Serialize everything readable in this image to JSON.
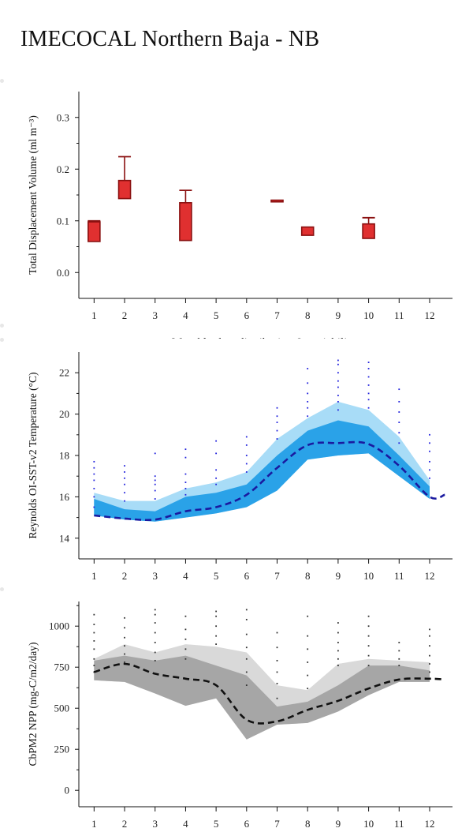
{
  "page": {
    "title": "IMECOCAL Northern Baja - NB"
  },
  "chart_data": [
    {
      "type": "bar",
      "id": "displacement",
      "ylabel": "Total Displacement Volume (ml m⁻³)",
      "xlabel": "Monthly data distribution & variability",
      "x_ticks": [
        "1",
        "2",
        "3",
        "4",
        "5",
        "6",
        "7",
        "8",
        "9",
        "10",
        "11",
        "12"
      ],
      "ylim": [
        -0.05,
        0.35
      ],
      "y_ticks": [
        "0.0",
        "0.1",
        "0.2",
        "0.3"
      ],
      "y_tick_values": [
        0.0,
        0.1,
        0.2,
        0.3
      ],
      "box_color": "#e03030",
      "box_edge": "#8a1010",
      "boxes": [
        {
          "month": 1,
          "low": 0.06,
          "high": 0.098,
          "whisker": 0.1
        },
        {
          "month": 2,
          "low": 0.143,
          "high": 0.178,
          "whisker": 0.224
        },
        {
          "month": 4,
          "low": 0.062,
          "high": 0.135,
          "whisker": 0.159
        },
        {
          "month": 7,
          "low": 0.138,
          "high": 0.14,
          "whisker": 0.14
        },
        {
          "month": 8,
          "low": 0.072,
          "high": 0.088,
          "whisker": 0.088
        },
        {
          "month": 10,
          "low": 0.066,
          "high": 0.094,
          "whisker": 0.106
        }
      ]
    },
    {
      "type": "area",
      "id": "sst",
      "ylabel": "Reynolds OI-SST-v2 Temperature (°C)",
      "x_ticks": [
        "1",
        "2",
        "3",
        "4",
        "5",
        "6",
        "7",
        "8",
        "9",
        "10",
        "11",
        "12"
      ],
      "ylim": [
        13,
        23
      ],
      "y_ticks": [
        "14",
        "16",
        "18",
        "20",
        "22"
      ],
      "y_tick_values": [
        14,
        16,
        18,
        20,
        22
      ],
      "x": [
        1,
        2,
        3,
        4,
        5,
        6,
        7,
        8,
        9,
        10,
        11,
        12
      ],
      "outer_band": {
        "color": "#a8dcf7",
        "low": [
          15.1,
          14.9,
          14.8,
          15.0,
          15.2,
          15.5,
          16.3,
          17.8,
          18.0,
          18.1,
          17.0,
          15.9
        ],
        "high": [
          16.2,
          15.8,
          15.8,
          16.4,
          16.7,
          17.2,
          18.8,
          19.8,
          20.6,
          20.2,
          18.9,
          16.8
        ]
      },
      "inner_band": {
        "color": "#2aa2e8",
        "low": [
          15.1,
          14.9,
          14.8,
          15.0,
          15.2,
          15.5,
          16.3,
          17.8,
          18.0,
          18.1,
          17.0,
          15.9
        ],
        "high": [
          15.9,
          15.4,
          15.3,
          16.0,
          16.2,
          16.6,
          18.0,
          19.2,
          19.7,
          19.4,
          18.0,
          16.5
        ]
      },
      "mean": {
        "color": "#1a1aa0",
        "x": [
          1,
          2,
          3,
          4,
          5,
          6,
          7,
          8,
          9,
          10,
          11,
          12,
          12.5
        ],
        "y": [
          15.1,
          14.95,
          14.9,
          15.3,
          15.5,
          16.1,
          17.4,
          18.5,
          18.6,
          18.55,
          17.5,
          16.0,
          16.1
        ]
      },
      "points": {
        "color": "#2222dd",
        "data": [
          {
            "x": 1,
            "ys": [
              15.5,
              16.0,
              16.4,
              16.8,
              17.1,
              17.4,
              17.7
            ]
          },
          {
            "x": 2,
            "ys": [
              15.8,
              16.2,
              16.6,
              16.9,
              17.2,
              17.5
            ]
          },
          {
            "x": 3,
            "ys": [
              15.9,
              16.3,
              16.6,
              16.8,
              17.0,
              18.1
            ]
          },
          {
            "x": 4,
            "ys": [
              16.1,
              16.4,
              16.7,
              17.1,
              17.9,
              18.3
            ]
          },
          {
            "x": 5,
            "ys": [
              16.6,
              16.9,
              17.3,
              18.1,
              18.7
            ]
          },
          {
            "x": 6,
            "ys": [
              17.2,
              17.6,
              18.0,
              18.5,
              18.9
            ]
          },
          {
            "x": 7,
            "ys": [
              18.8,
              19.2,
              19.6,
              19.9,
              20.3
            ]
          },
          {
            "x": 8,
            "ys": [
              19.9,
              20.3,
              20.6,
              21.0,
              21.5,
              22.2
            ]
          },
          {
            "x": 9,
            "ys": [
              20.2,
              20.6,
              20.9,
              21.3,
              21.6,
              22.0,
              22.4,
              22.6
            ]
          },
          {
            "x": 10,
            "ys": [
              20.3,
              20.7,
              21.0,
              21.4,
              21.8,
              22.2,
              22.5
            ]
          },
          {
            "x": 11,
            "ys": [
              18.6,
              19.1,
              19.6,
              20.1,
              20.6,
              21.2
            ]
          },
          {
            "x": 12,
            "ys": [
              16.9,
              17.3,
              17.7,
              18.2,
              18.6,
              19.0
            ]
          }
        ]
      }
    },
    {
      "type": "area",
      "id": "npp",
      "ylabel": "CbPM2 NPP (mg-C/m2/day)",
      "x_ticks": [
        "1",
        "2",
        "3",
        "4",
        "5",
        "6",
        "7",
        "8",
        "9",
        "10",
        "11",
        "12"
      ],
      "ylim": [
        -100,
        1150
      ],
      "y_ticks": [
        "0",
        "250",
        "500",
        "750",
        "1000"
      ],
      "y_tick_values": [
        0,
        250,
        500,
        750,
        1000
      ],
      "x": [
        1,
        2,
        3,
        4,
        5,
        6,
        7,
        8,
        9,
        10,
        11,
        12
      ],
      "outer_band": {
        "color": "#d9d9d9",
        "low": [
          670,
          660,
          590,
          515,
          560,
          310,
          400,
          410,
          480,
          580,
          660,
          660
        ],
        "high": [
          800,
          890,
          840,
          890,
          875,
          840,
          640,
          610,
          770,
          800,
          790,
          780
        ]
      },
      "inner_band": {
        "color": "#a6a6a6",
        "low": [
          670,
          660,
          590,
          515,
          560,
          310,
          400,
          410,
          480,
          580,
          660,
          660
        ],
        "high": [
          790,
          820,
          790,
          820,
          760,
          700,
          510,
          540,
          640,
          760,
          760,
          730
        ]
      },
      "mean": {
        "color": "#111111",
        "x": [
          1,
          2,
          3,
          4,
          5,
          6,
          7,
          8,
          9,
          10,
          11,
          12,
          12.5
        ],
        "y": [
          720,
          770,
          710,
          680,
          640,
          430,
          420,
          490,
          545,
          620,
          675,
          680,
          675
        ]
      },
      "points": {
        "color": "#333333",
        "data": [
          {
            "x": 1,
            "ys": [
              720,
              760,
              800,
              860,
              910,
              960,
              1010,
              1070
            ]
          },
          {
            "x": 2,
            "ys": [
              780,
              830,
              880,
              930,
              990,
              1050
            ]
          },
          {
            "x": 3,
            "ys": [
              790,
              840,
              900,
              960,
              1020,
              1070,
              1100
            ]
          },
          {
            "x": 4,
            "ys": [
              800,
              860,
              920,
              980,
              1060
            ]
          },
          {
            "x": 5,
            "ys": [
              890,
              940,
              1000,
              1060,
              1090
            ]
          },
          {
            "x": 6,
            "ys": [
              640,
              720,
              800,
              870,
              950,
              1040,
              1100
            ]
          },
          {
            "x": 7,
            "ys": [
              560,
              650,
              720,
              790,
              870,
              960
            ]
          },
          {
            "x": 8,
            "ys": [
              620,
              700,
              780,
              860,
              940,
              1060
            ]
          },
          {
            "x": 9,
            "ys": [
              760,
              800,
              850,
              900,
              960,
              1020
            ]
          },
          {
            "x": 10,
            "ys": [
              760,
              820,
              880,
              940,
              1000,
              1060
            ]
          },
          {
            "x": 11,
            "ys": [
              760,
              800,
              850,
              900
            ]
          },
          {
            "x": 12,
            "ys": [
              720,
              770,
              820,
              880,
              940,
              980
            ]
          }
        ]
      }
    }
  ]
}
